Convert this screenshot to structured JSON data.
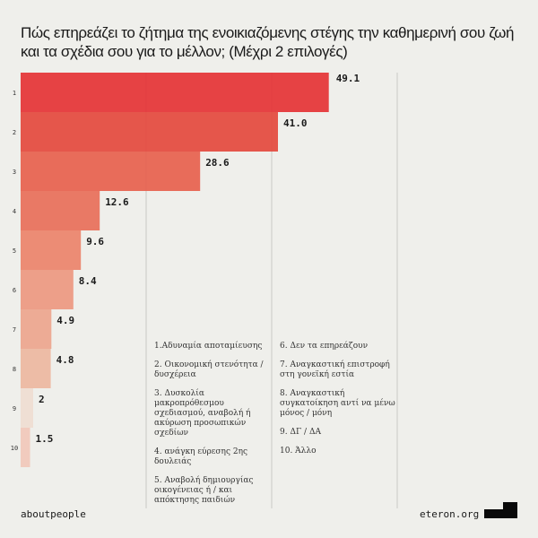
{
  "title": "Πώς επηρεάζει το ζήτημα της ενοικιαζόμενης στέγης την καθημερινή σου ζωή και τα σχέδια σου για το μέλλον; (Μέχρι 2 επιλογές)",
  "chart_data": {
    "type": "bar",
    "orientation": "horizontal",
    "title": "Πώς επηρεάζει το ζήτημα της ενοικιαζόμενης στέγης την καθημερινή σου ζωή και τα σχέδια σου για το μέλλον; (Μέχρι 2 επιλογές)",
    "categories": [
      "1",
      "2",
      "3",
      "4",
      "5",
      "6",
      "7",
      "8",
      "9",
      "10"
    ],
    "values": [
      49.1,
      41.0,
      28.6,
      12.6,
      9.6,
      8.4,
      4.9,
      4.8,
      2,
      1.5
    ],
    "value_labels": [
      "49.1",
      "41.0",
      "28.6",
      "12.6",
      "9.6",
      "8.4",
      "4.9",
      "4.8",
      "2",
      "1.5"
    ],
    "colors": [
      "#e5383b",
      "#e44d42",
      "#e76452",
      "#e8725e",
      "#eb866f",
      "#ec9a84",
      "#eca790",
      "#ecb8a2",
      "#eeddd3",
      "#f0c8bc"
    ],
    "xlim": [
      0,
      60
    ],
    "gridlines_at": [
      20,
      40,
      60
    ],
    "grid": true,
    "legend_columns": [
      [
        "1.Αδυναμία αποταμίευσης",
        "2. Οικονομική στενότητα / δυσχέρεια",
        "3. Δυσκολία μακροπρόθεσμου σχεδιασμού, αναβολή ή ακύρωση προσωπικών σχεδίων",
        "4. ανάγκη εύρεσης 2ης δουλειάς",
        "5. Αναβολή δημιουργίας οικογένειας ή / και απόκτησης παιδιών"
      ],
      [
        "6. Δεν τα επηρεάζουν",
        "7. Αναγκαστική επιστροφή στη γονεϊκή εστία",
        "8. Αναγκαστική συγκατοίκηση αντί να μένω μόνος / μόνη",
        "9. ΔΓ / ΔΑ",
        "10. Άλλο"
      ]
    ]
  },
  "footer": {
    "left": "aboutpeople",
    "right": "eteron.org",
    "logo": "eteron-logo"
  }
}
